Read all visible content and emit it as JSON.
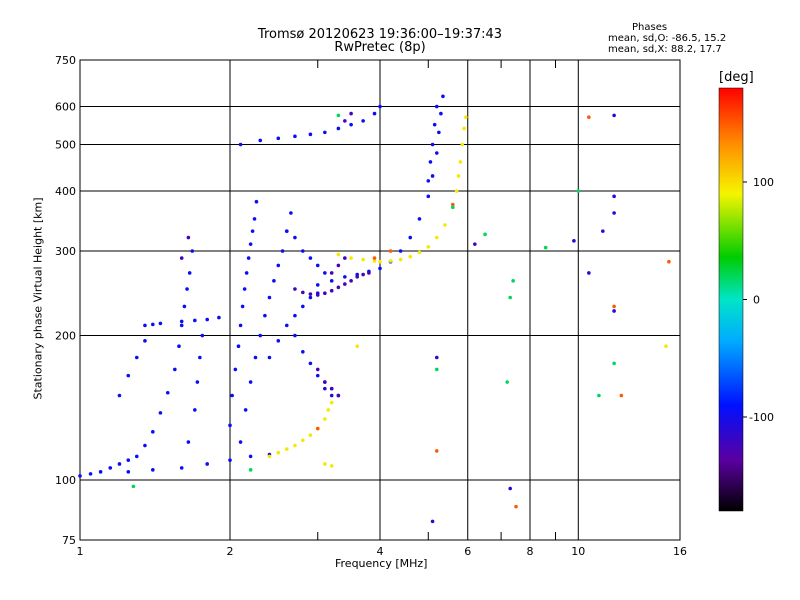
{
  "chart_data": {
    "type": "scatter",
    "title": "Tromsø 20120623 19:36:00–19:37:43",
    "subtitle": "RwPretec (8p)",
    "xlabel": "Frequency [MHz]",
    "ylabel": "Stationary phase Virtual Height [km]",
    "x_scale": "log",
    "y_scale": "log",
    "xlim": [
      1,
      16
    ],
    "ylim": [
      75,
      750
    ],
    "x_ticks": [
      1,
      2,
      4,
      6,
      8,
      10,
      16
    ],
    "x_tick_labels": [
      "1",
      "2",
      "4",
      "6",
      "8",
      "10",
      "16"
    ],
    "y_ticks": [
      75,
      100,
      200,
      300,
      400,
      500,
      600,
      750
    ],
    "y_tick_labels": [
      "75",
      "100",
      "200",
      "300",
      "400",
      "500",
      "600",
      "750"
    ],
    "grid": true,
    "legend": {
      "heading": "Phases",
      "line1": "mean, sd,O: -86.5, 15.2",
      "line2": "mean, sd,X: 88.2, 17.7",
      "placement": "top-right"
    },
    "colorbar": {
      "title": "[deg]",
      "ticks": [
        100,
        0,
        -100
      ],
      "tick_labels": [
        "100",
        "0",
        "-100"
      ],
      "range": [
        -180,
        180
      ]
    },
    "series": [
      {
        "color_deg": -95,
        "points": [
          [
            1.0,
            102
          ],
          [
            1.05,
            103
          ],
          [
            1.1,
            104
          ],
          [
            1.15,
            106
          ],
          [
            1.2,
            108
          ],
          [
            1.25,
            110
          ],
          [
            1.3,
            112
          ],
          [
            1.35,
            118
          ],
          [
            1.4,
            126
          ],
          [
            1.45,
            138
          ],
          [
            1.5,
            152
          ],
          [
            1.55,
            170
          ],
          [
            1.58,
            190
          ],
          [
            1.6,
            210
          ],
          [
            1.62,
            230
          ],
          [
            1.64,
            250
          ],
          [
            1.66,
            270
          ],
          [
            1.68,
            300
          ],
          [
            1.25,
            104
          ],
          [
            1.4,
            105
          ],
          [
            1.6,
            106
          ],
          [
            1.8,
            108
          ],
          [
            2.0,
            110
          ],
          [
            2.2,
            112
          ],
          [
            2.4,
            113
          ],
          [
            1.35,
            210
          ],
          [
            1.4,
            211
          ],
          [
            1.45,
            212
          ],
          [
            1.6,
            214
          ],
          [
            1.7,
            215
          ],
          [
            1.8,
            216
          ],
          [
            1.9,
            218
          ],
          [
            1.65,
            120
          ],
          [
            1.7,
            140
          ],
          [
            1.72,
            160
          ],
          [
            1.74,
            180
          ],
          [
            1.76,
            200
          ],
          [
            2.0,
            130
          ],
          [
            2.02,
            150
          ],
          [
            2.05,
            170
          ],
          [
            2.08,
            190
          ],
          [
            2.1,
            210
          ],
          [
            2.12,
            230
          ],
          [
            2.14,
            250
          ],
          [
            2.16,
            270
          ],
          [
            2.18,
            290
          ],
          [
            2.2,
            310
          ],
          [
            2.22,
            330
          ],
          [
            2.24,
            350
          ],
          [
            2.26,
            380
          ],
          [
            2.1,
            120
          ],
          [
            2.15,
            140
          ],
          [
            2.2,
            160
          ],
          [
            2.25,
            180
          ],
          [
            2.3,
            200
          ],
          [
            2.35,
            220
          ],
          [
            2.4,
            240
          ],
          [
            2.45,
            260
          ],
          [
            2.5,
            280
          ],
          [
            2.55,
            300
          ],
          [
            2.6,
            330
          ],
          [
            2.65,
            360
          ],
          [
            2.4,
            180
          ],
          [
            2.5,
            195
          ],
          [
            2.6,
            210
          ],
          [
            2.7,
            220
          ],
          [
            2.8,
            230
          ],
          [
            2.9,
            240
          ],
          [
            3.0,
            245
          ],
          [
            2.7,
            200
          ],
          [
            2.8,
            185
          ],
          [
            2.9,
            175
          ],
          [
            3.0,
            165
          ],
          [
            3.1,
            160
          ],
          [
            3.2,
            155
          ],
          [
            3.3,
            150
          ],
          [
            2.6,
            330
          ],
          [
            2.7,
            320
          ],
          [
            2.8,
            300
          ],
          [
            2.9,
            290
          ],
          [
            3.0,
            280
          ],
          [
            3.1,
            270
          ],
          [
            2.1,
            500
          ],
          [
            2.3,
            510
          ],
          [
            2.5,
            515
          ],
          [
            2.7,
            520
          ],
          [
            2.9,
            525
          ],
          [
            3.1,
            530
          ],
          [
            3.3,
            540
          ],
          [
            3.5,
            550
          ],
          [
            3.7,
            560
          ],
          [
            3.9,
            580
          ],
          [
            4.0,
            600
          ],
          [
            3.0,
            255
          ],
          [
            3.2,
            260
          ],
          [
            3.4,
            265
          ],
          [
            3.6,
            268
          ],
          [
            3.8,
            272
          ],
          [
            4.0,
            276
          ],
          [
            4.2,
            285
          ],
          [
            4.4,
            300
          ],
          [
            4.6,
            320
          ],
          [
            4.8,
            350
          ],
          [
            5.0,
            390
          ],
          [
            5.1,
            430
          ],
          [
            5.2,
            480
          ],
          [
            5.25,
            530
          ],
          [
            5.3,
            580
          ],
          [
            5.35,
            630
          ],
          [
            5.0,
            420
          ],
          [
            5.05,
            460
          ],
          [
            5.1,
            500
          ],
          [
            5.15,
            550
          ],
          [
            5.2,
            600
          ],
          [
            1.2,
            150
          ],
          [
            1.25,
            165
          ],
          [
            1.3,
            180
          ],
          [
            1.35,
            195
          ]
        ]
      },
      {
        "color_deg": -125,
        "points": [
          [
            2.7,
            250
          ],
          [
            2.8,
            246
          ],
          [
            2.9,
            244
          ],
          [
            3.0,
            243
          ],
          [
            3.1,
            245
          ],
          [
            3.2,
            248
          ],
          [
            3.3,
            252
          ],
          [
            3.4,
            256
          ],
          [
            3.5,
            260
          ],
          [
            3.6,
            265
          ],
          [
            3.7,
            268
          ],
          [
            3.8,
            270
          ],
          [
            3.0,
            170
          ],
          [
            3.1,
            160
          ],
          [
            3.2,
            155
          ],
          [
            3.3,
            150
          ],
          [
            3.2,
            270
          ],
          [
            3.3,
            280
          ],
          [
            3.4,
            290
          ],
          [
            3.5,
            580
          ],
          [
            3.4,
            560
          ],
          [
            6.2,
            310
          ],
          [
            1.65,
            320
          ],
          [
            1.6,
            290
          ]
        ]
      },
      {
        "color_deg": 95,
        "points": [
          [
            2.4,
            112
          ],
          [
            2.5,
            114
          ],
          [
            2.6,
            116
          ],
          [
            2.7,
            118
          ],
          [
            2.8,
            121
          ],
          [
            2.9,
            124
          ],
          [
            3.0,
            128
          ],
          [
            3.1,
            134
          ],
          [
            3.15,
            140
          ],
          [
            3.2,
            145
          ],
          [
            3.3,
            295
          ],
          [
            3.5,
            290
          ],
          [
            3.7,
            288
          ],
          [
            3.9,
            286
          ],
          [
            4.0,
            285
          ],
          [
            4.2,
            286
          ],
          [
            4.4,
            288
          ],
          [
            4.6,
            292
          ],
          [
            4.8,
            298
          ],
          [
            5.0,
            306
          ],
          [
            5.2,
            320
          ],
          [
            5.4,
            340
          ],
          [
            5.6,
            370
          ],
          [
            5.7,
            400
          ],
          [
            5.75,
            430
          ],
          [
            5.8,
            460
          ],
          [
            5.85,
            500
          ],
          [
            5.9,
            540
          ],
          [
            5.95,
            570
          ],
          [
            3.1,
            108
          ],
          [
            3.2,
            107
          ],
          [
            3.6,
            190
          ],
          [
            15.0,
            190
          ]
        ]
      },
      {
        "color_deg": 150,
        "points": [
          [
            3.0,
            128
          ],
          [
            3.9,
            290
          ],
          [
            5.6,
            375
          ],
          [
            11.8,
            230
          ],
          [
            15.2,
            285
          ],
          [
            12.2,
            150
          ],
          [
            10.5,
            570
          ],
          [
            5.2,
            115
          ],
          [
            7.5,
            88
          ],
          [
            4.2,
            300
          ]
        ]
      },
      {
        "color_deg": 20,
        "points": [
          [
            6.5,
            325
          ],
          [
            7.2,
            160
          ],
          [
            7.3,
            240
          ],
          [
            7.4,
            260
          ],
          [
            5.2,
            170
          ],
          [
            11.0,
            150
          ],
          [
            3.3,
            575
          ],
          [
            8.6,
            305
          ],
          [
            10.0,
            400
          ],
          [
            11.8,
            175
          ],
          [
            1.28,
            97
          ],
          [
            2.2,
            105
          ],
          [
            5.6,
            370
          ]
        ]
      },
      {
        "color_deg": -110,
        "points": [
          [
            11.8,
            575
          ],
          [
            11.8,
            390
          ],
          [
            11.8,
            360
          ],
          [
            11.8,
            225
          ],
          [
            10.5,
            270
          ],
          [
            11.2,
            330
          ],
          [
            7.3,
            96
          ],
          [
            5.1,
            82
          ],
          [
            9.8,
            315
          ],
          [
            5.2,
            180
          ],
          [
            3.1,
            155
          ],
          [
            3.2,
            150
          ]
        ]
      }
    ]
  }
}
